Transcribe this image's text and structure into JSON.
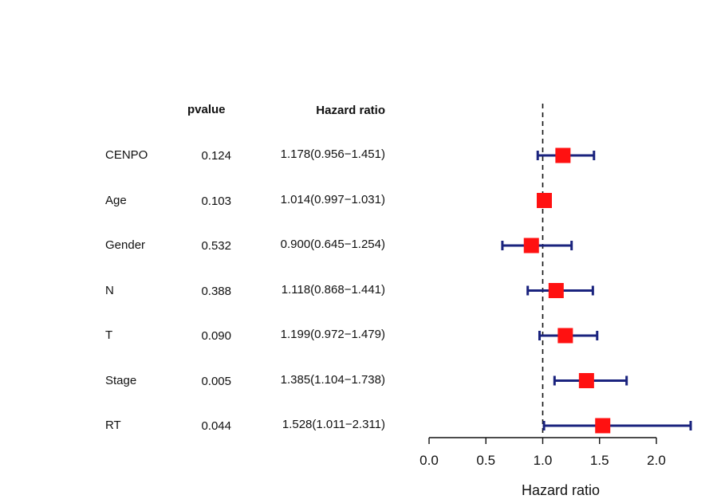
{
  "table": {
    "pvalue_header": "pvalue",
    "hr_header": "Hazard ratio"
  },
  "colors": {
    "box": "#ff1111",
    "whisker": "#1a237e",
    "axis": "#111111"
  },
  "chart_data": {
    "type": "forest",
    "xlabel": "Hazard ratio",
    "xlim": [
      0.0,
      2.0
    ],
    "xticks": [
      0.0,
      0.5,
      1.0,
      1.5,
      2.0
    ],
    "xtick_labels": [
      "0.0",
      "0.5",
      "1.0",
      "1.5",
      "2.0"
    ],
    "reference_line": 1.0,
    "rows": [
      {
        "name": "CENPO",
        "pvalue": "0.124",
        "hr_text": "1.178(0.956−1.451)",
        "hr": 1.178,
        "lower": 0.956,
        "upper": 1.451
      },
      {
        "name": "Age",
        "pvalue": "0.103",
        "hr_text": "1.014(0.997−1.031)",
        "hr": 1.014,
        "lower": 0.997,
        "upper": 1.031
      },
      {
        "name": "Gender",
        "pvalue": "0.532",
        "hr_text": "0.900(0.645−1.254)",
        "hr": 0.9,
        "lower": 0.645,
        "upper": 1.254
      },
      {
        "name": "N",
        "pvalue": "0.388",
        "hr_text": "1.118(0.868−1.441)",
        "hr": 1.118,
        "lower": 0.868,
        "upper": 1.441
      },
      {
        "name": "T",
        "pvalue": "0.090",
        "hr_text": "1.199(0.972−1.479)",
        "hr": 1.199,
        "lower": 0.972,
        "upper": 1.479
      },
      {
        "name": "Stage",
        "pvalue": "0.005",
        "hr_text": "1.385(1.104−1.738)",
        "hr": 1.385,
        "lower": 1.104,
        "upper": 1.738
      },
      {
        "name": "RT",
        "pvalue": "0.044",
        "hr_text": "1.528(1.011−2.311)",
        "hr": 1.528,
        "lower": 1.011,
        "upper": 2.311
      }
    ]
  }
}
